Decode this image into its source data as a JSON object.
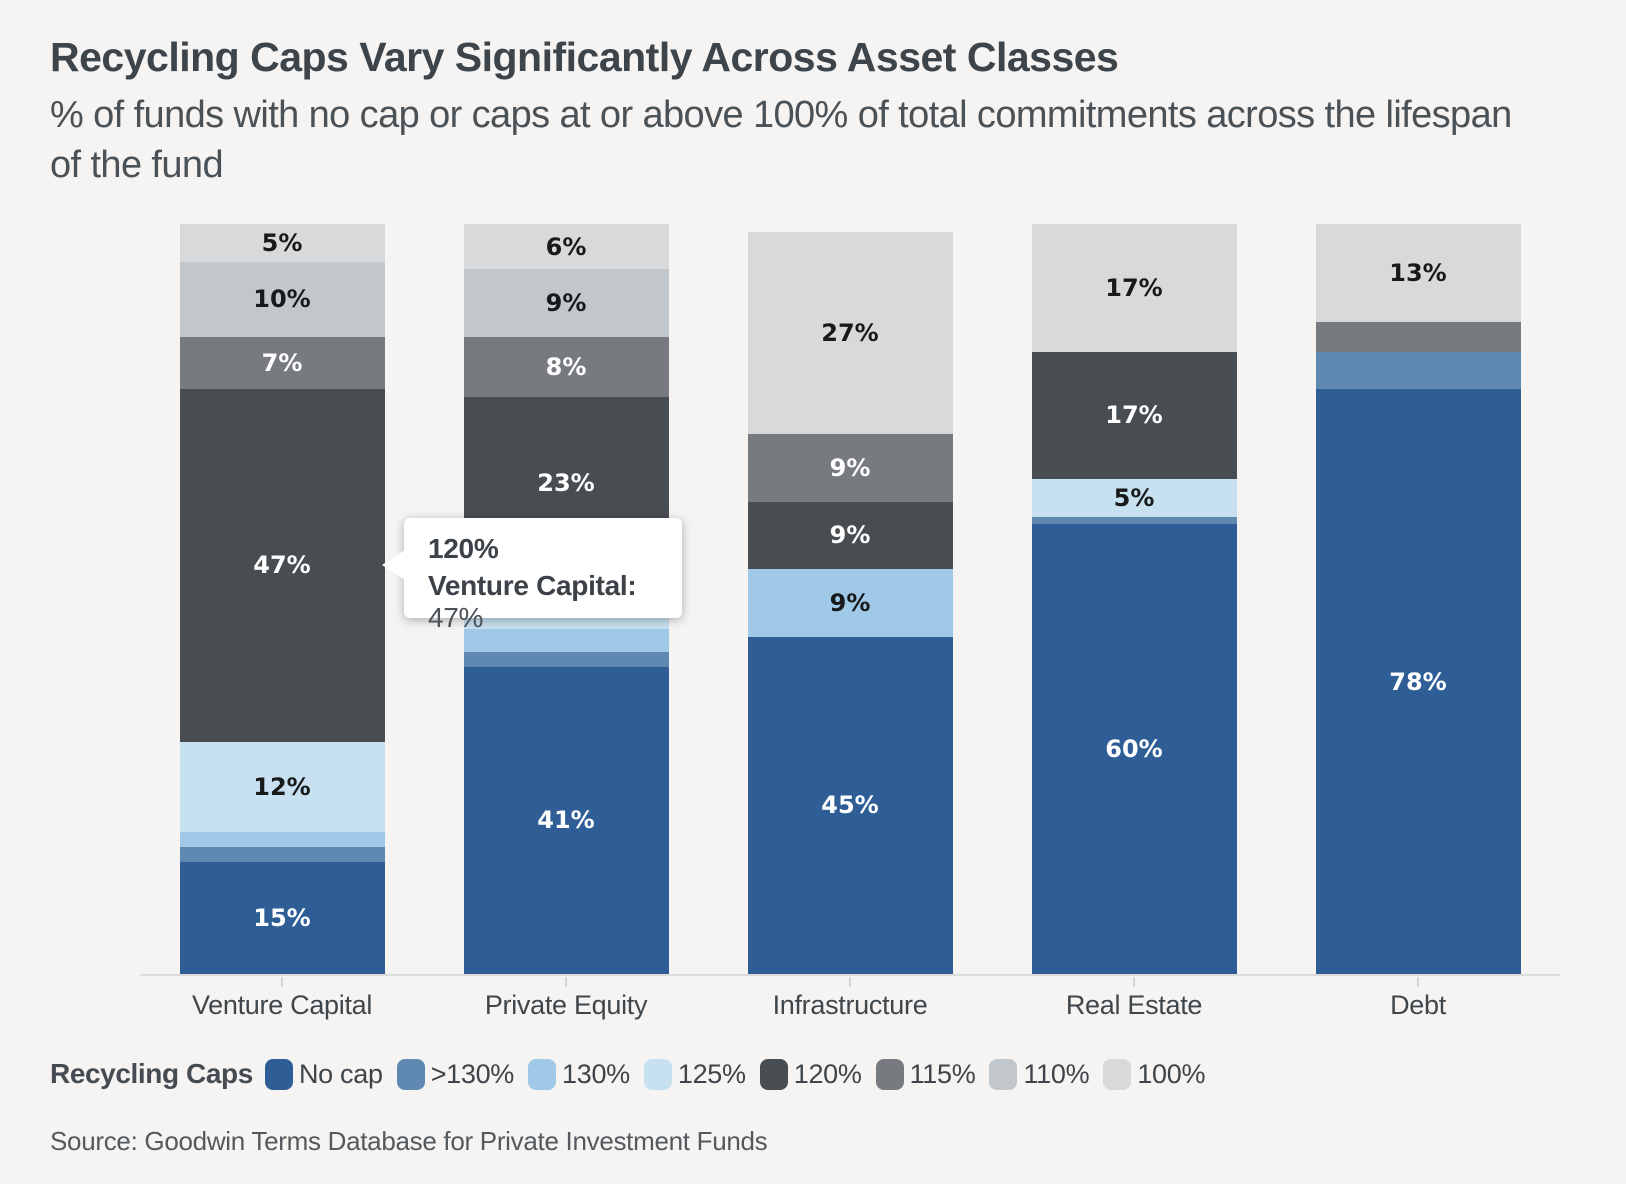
{
  "header": {
    "title": "Recycling Caps Vary Significantly Across Asset Classes",
    "subtitle": "% of funds with no cap or caps at or above 100% of total commitments across the lifespan of the fund"
  },
  "chart_data": {
    "type": "bar",
    "stacked": true,
    "unit": "%",
    "ylim": [
      0,
      100
    ],
    "grid": false,
    "legend_position": "bottom",
    "legend_title": "Recycling Caps",
    "categories": [
      "Venture Capital",
      "Private Equity",
      "Infrastructure",
      "Real Estate",
      "Debt"
    ],
    "series": [
      {
        "name": "No cap",
        "color": "#2f5e97",
        "text_color": "#ffffff",
        "values": [
          15,
          41,
          45,
          60,
          78
        ],
        "labels_shown": [
          true,
          true,
          true,
          true,
          true
        ]
      },
      {
        "name": ">130%",
        "color": "#5f89b0",
        "text_color": "#ffffff",
        "values": [
          2,
          2,
          0,
          1,
          5
        ],
        "labels_shown": [
          false,
          false,
          false,
          false,
          false
        ]
      },
      {
        "name": "130%",
        "color": "#a0c9e7",
        "text_color": "#17191b",
        "values": [
          2,
          3,
          9,
          0,
          0
        ],
        "labels_shown": [
          false,
          false,
          true,
          false,
          false
        ]
      },
      {
        "name": "125%",
        "color": "#c8e1f1",
        "text_color": "#17191b",
        "values": [
          12,
          8,
          0,
          5,
          0
        ],
        "labels_shown": [
          true,
          false,
          false,
          true,
          false
        ]
      },
      {
        "name": "120%",
        "color": "#484d52",
        "text_color": "#ffffff",
        "values": [
          47,
          23,
          9,
          17,
          0
        ],
        "labels_shown": [
          true,
          true,
          true,
          true,
          false
        ]
      },
      {
        "name": "115%",
        "color": "#777b7f",
        "text_color": "#ffffff",
        "values": [
          7,
          8,
          9,
          0,
          4
        ],
        "labels_shown": [
          true,
          true,
          true,
          false,
          false
        ]
      },
      {
        "name": "110%",
        "color": "#c2c7cc",
        "text_color": "#17191b",
        "values": [
          10,
          9,
          0,
          0,
          0
        ],
        "labels_shown": [
          true,
          true,
          false,
          false,
          false
        ]
      },
      {
        "name": "100%",
        "color": "#d8d9da",
        "text_color": "#17191b",
        "values": [
          5,
          6,
          27,
          17,
          13
        ],
        "labels_shown": [
          true,
          true,
          true,
          true,
          true
        ]
      }
    ]
  },
  "tooltip": {
    "heading": "120%",
    "category_label": "Venture Capital:",
    "value": "47%"
  },
  "source": "Source: Goodwin Terms Database for Private Investment Funds"
}
